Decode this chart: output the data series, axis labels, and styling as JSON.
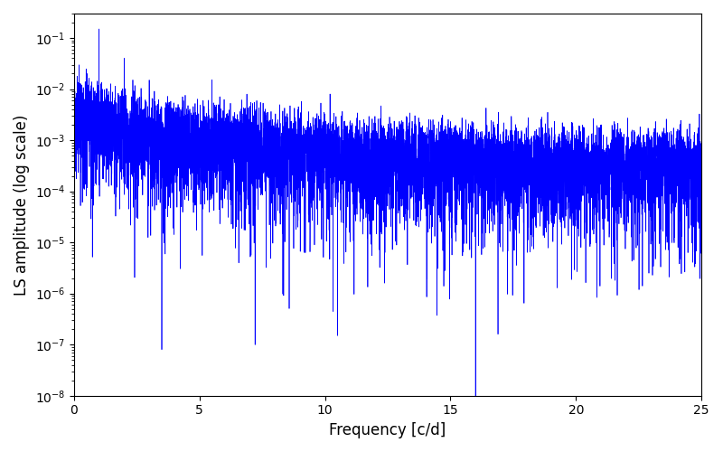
{
  "title": "",
  "xlabel": "Frequency [c/d]",
  "ylabel": "LS amplitude (log scale)",
  "xlim": [
    0,
    25
  ],
  "ylim": [
    1e-08,
    0.3
  ],
  "line_color": "#0000ff",
  "line_width": 0.5,
  "freq_min": 0.0,
  "freq_max": 25.0,
  "n_points": 8000,
  "seed": 77,
  "background_color": "#ffffff",
  "figsize": [
    8.0,
    5.0
  ],
  "dpi": 100
}
